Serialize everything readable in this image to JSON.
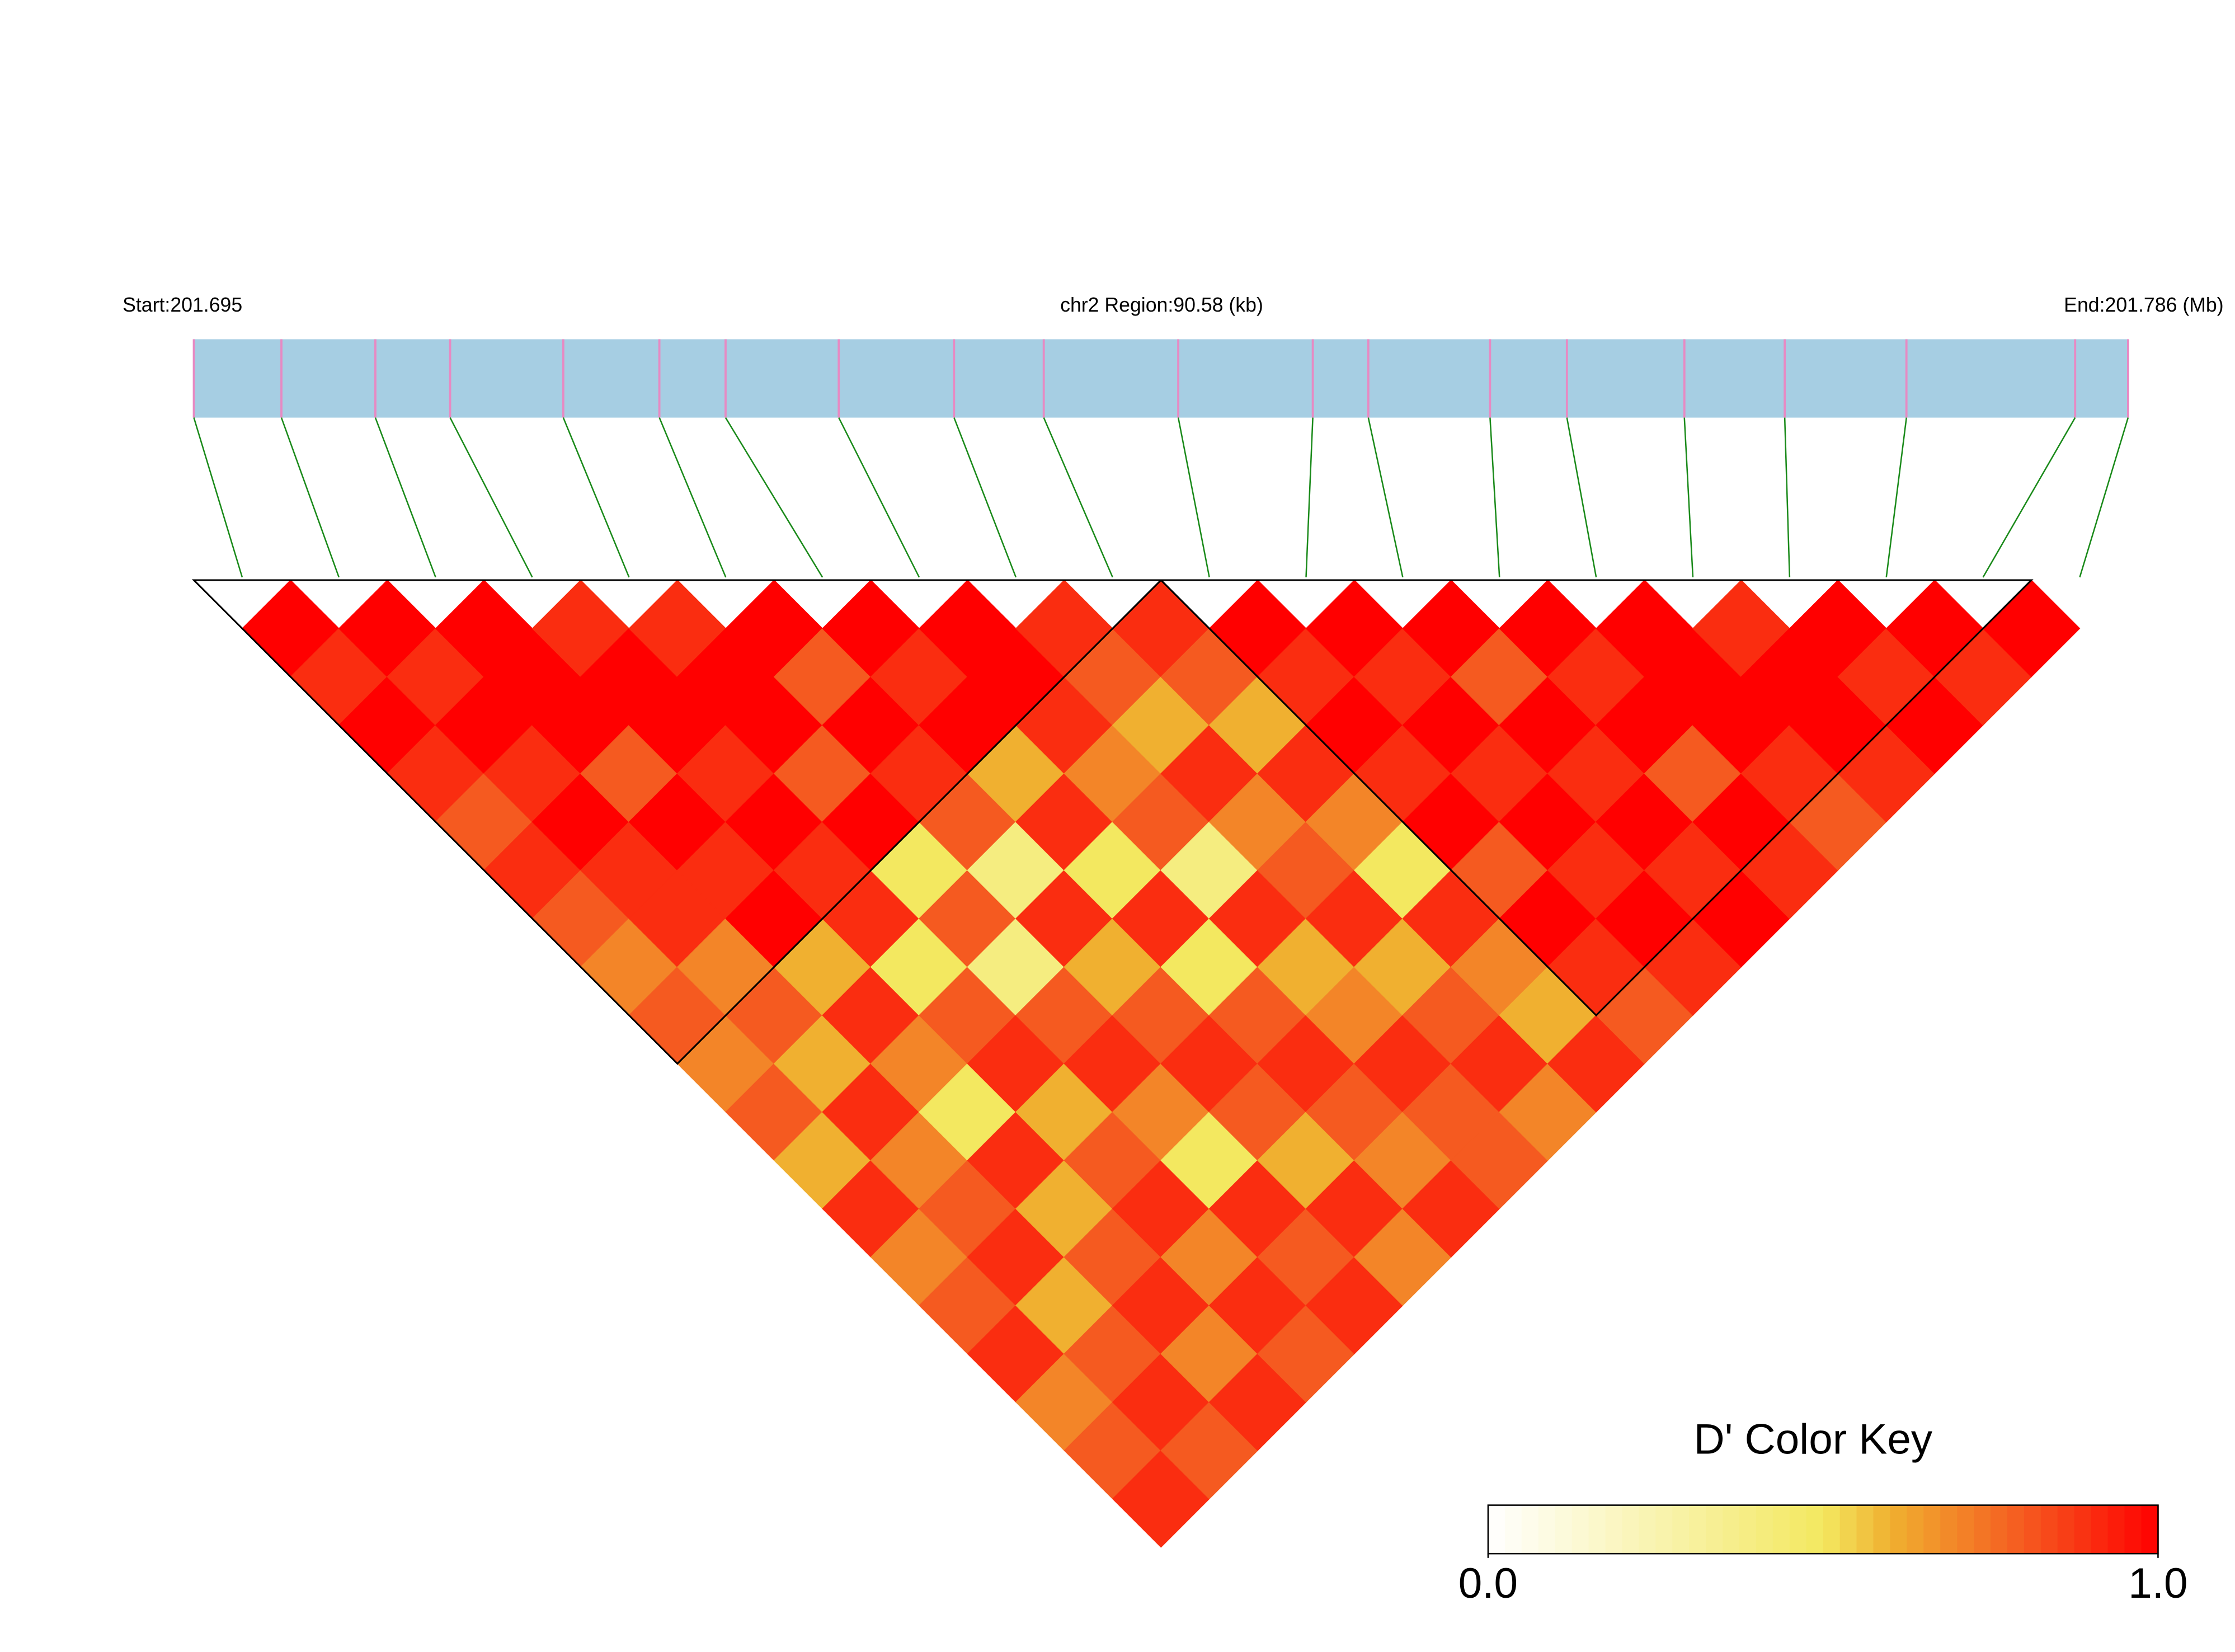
{
  "chart_data": {
    "type": "ld_heatmap",
    "start_label": "Start:201.695",
    "region_label": "chr2 Region:90.58 (kb)",
    "end_label": "End:201.786 (Mb)",
    "colorbar_title": "D' Color Key",
    "xlim": [
      0,
      90.58
    ],
    "snp_positions_kb": [
      0,
      4.1,
      8.5,
      12.0,
      17.3,
      21.8,
      24.9,
      30.2,
      35.6,
      39.8,
      46.1,
      52.4,
      55.0,
      60.7,
      64.3,
      69.8,
      74.5,
      80.2,
      88.1,
      90.58
    ],
    "dprime": [
      [
        1.0
      ],
      [
        0.9,
        1.0
      ],
      [
        1.0,
        0.9,
        1.0
      ],
      [
        0.9,
        1.0,
        1.0,
        0.9
      ],
      [
        0.8,
        0.9,
        1.0,
        1.0,
        0.9
      ],
      [
        0.9,
        1.0,
        0.8,
        1.0,
        1.0,
        1.0
      ],
      [
        0.8,
        0.9,
        1.0,
        0.9,
        1.0,
        0.8,
        1.0
      ],
      [
        0.7,
        0.9,
        0.9,
        1.0,
        0.8,
        1.0,
        0.9,
        1.0
      ],
      [
        0.8,
        0.7,
        1.0,
        0.9,
        1.0,
        0.9,
        1.0,
        1.0,
        0.9
      ],
      [
        0.7,
        0.8,
        0.6,
        0.9,
        0.5,
        0.8,
        0.6,
        0.9,
        0.8,
        0.9
      ],
      [
        0.8,
        0.6,
        0.9,
        0.5,
        0.8,
        0.4,
        0.9,
        0.7,
        0.6,
        0.8,
        1.0
      ],
      [
        0.6,
        0.9,
        0.7,
        0.8,
        0.4,
        0.9,
        0.5,
        0.8,
        0.9,
        0.6,
        0.9,
        1.0
      ],
      [
        0.9,
        0.7,
        0.5,
        0.9,
        0.8,
        0.6,
        0.9,
        0.4,
        0.7,
        0.9,
        1.0,
        0.9,
        1.0
      ],
      [
        0.7,
        0.8,
        0.9,
        0.6,
        0.9,
        0.8,
        0.5,
        0.9,
        0.8,
        0.7,
        0.9,
        1.0,
        0.8,
        1.0
      ],
      [
        0.8,
        0.9,
        0.6,
        0.8,
        0.7,
        0.9,
        0.8,
        0.6,
        0.9,
        0.5,
        1.0,
        0.9,
        1.0,
        0.9,
        1.0
      ],
      [
        0.9,
        0.6,
        0.8,
        0.9,
        0.5,
        0.8,
        0.9,
        0.7,
        0.6,
        0.9,
        0.8,
        1.0,
        0.9,
        1.0,
        1.0,
        0.9
      ],
      [
        0.7,
        0.8,
        0.9,
        0.7,
        0.9,
        0.6,
        0.8,
        0.9,
        0.8,
        0.7,
        1.0,
        0.9,
        1.0,
        0.8,
        1.0,
        1.0,
        1.0
      ],
      [
        0.8,
        0.9,
        0.7,
        0.9,
        0.8,
        0.9,
        0.7,
        0.8,
        0.9,
        0.6,
        0.9,
        1.0,
        0.9,
        1.0,
        0.9,
        1.0,
        0.9,
        1.0
      ],
      [
        0.9,
        0.8,
        0.9,
        0.8,
        0.9,
        0.7,
        0.9,
        0.8,
        0.7,
        0.9,
        0.8,
        0.9,
        1.0,
        0.9,
        0.8,
        0.9,
        1.0,
        0.9,
        1.0
      ]
    ],
    "blocks": [
      [
        0,
        9
      ],
      [
        10,
        18
      ]
    ],
    "bar_color": "#a6cee3",
    "snp_mark_color": "#e78ac3",
    "link_color": "#1a8a1a",
    "color_stops": [
      [
        0,
        "#ffffff"
      ],
      [
        0.5,
        "#f3e860"
      ],
      [
        0.6,
        "#f0b030"
      ],
      [
        0.8,
        "#f55a20"
      ],
      [
        1,
        "#ff0000"
      ]
    ],
    "colorbar_ticks": [
      {
        "value": 0,
        "label": "0.0"
      },
      {
        "value": 1,
        "label": "1.0"
      }
    ]
  }
}
